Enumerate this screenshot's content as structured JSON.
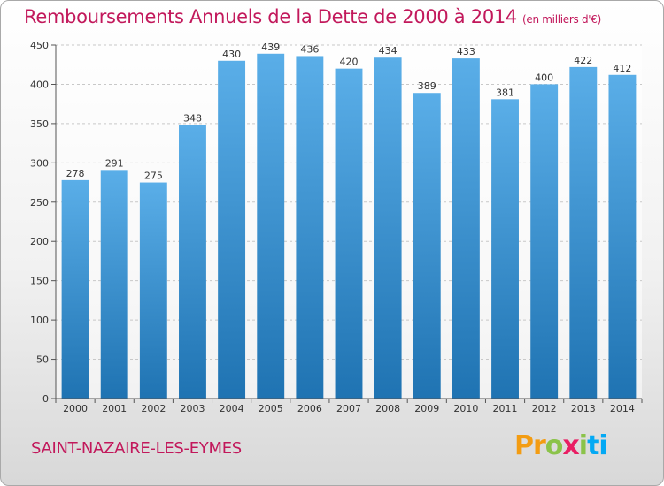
{
  "title": "Remboursements Annuels de la Dette de 2000 à 2014",
  "subtitle": "(en milliers d'€)",
  "commune": "SAINT-NAZAIRE-LES-EYMES",
  "logo": [
    "P",
    "r",
    "o",
    "x",
    "i",
    "t",
    "i"
  ],
  "colors": {
    "accent": "#c2185b",
    "bar_top": "#5aaee8",
    "bar_bottom": "#1f73b2",
    "logo": [
      "#f39c12",
      "#f39c12",
      "#8bc34a",
      "#e91e63",
      "#8bc34a",
      "#03a9f4",
      "#03a9f4"
    ]
  },
  "chart_data": {
    "type": "bar",
    "categories": [
      "2000",
      "2001",
      "2002",
      "2003",
      "2004",
      "2005",
      "2006",
      "2007",
      "2008",
      "2009",
      "2010",
      "2011",
      "2012",
      "2013",
      "2014"
    ],
    "values": [
      278,
      291,
      275,
      348,
      430,
      439,
      436,
      420,
      434,
      389,
      433,
      381,
      400,
      422,
      412
    ],
    "ylim": [
      0,
      450
    ],
    "yticks": [
      0,
      50,
      100,
      150,
      200,
      250,
      300,
      350,
      400,
      450
    ],
    "grid": true
  }
}
